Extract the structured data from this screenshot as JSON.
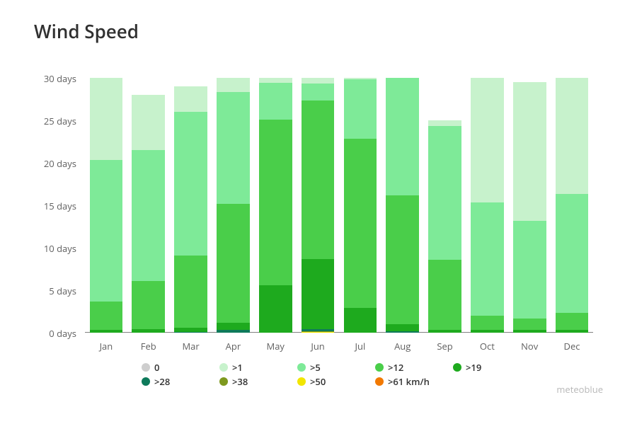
{
  "title": "Wind Speed",
  "attribution": "meteoblue",
  "chart": {
    "type": "stacked-bar",
    "ymax": 30,
    "ytick_step": 5,
    "ytick_suffix": " days",
    "background_color": "#ffffff",
    "baseline_color": "#808080",
    "tick_font_size": 13,
    "tick_color": "#606060",
    "title_font_size": 26,
    "title_color": "#303030",
    "categories": [
      "Jan",
      "Feb",
      "Mar",
      "Apr",
      "May",
      "Jun",
      "Jul",
      "Aug",
      "Sep",
      "Oct",
      "Nov",
      "Dec"
    ],
    "series_order": [
      "gt61",
      "gt50",
      "gt38",
      "gt28",
      "gt19",
      "gt12",
      "gt5",
      "gt1",
      "zero"
    ],
    "series": {
      "zero": {
        "label": "0",
        "color": "#cecece",
        "values": [
          0,
          0,
          0,
          0,
          0,
          0,
          0,
          0,
          0,
          0,
          0,
          0
        ]
      },
      "gt1": {
        "label": ">1",
        "color": "#c7f2cc",
        "values": [
          9.7,
          6.5,
          3.0,
          1.7,
          0.6,
          0.7,
          0.2,
          0.0,
          0.7,
          14.7,
          16.3,
          13.7
        ]
      },
      "gt5": {
        "label": ">5",
        "color": "#7eea98",
        "values": [
          16.6,
          15.4,
          16.9,
          13.1,
          4.3,
          2.0,
          7.0,
          13.8,
          15.7,
          13.3,
          11.5,
          14.0
        ]
      },
      "gt12": {
        "label": ">12",
        "color": "#4ace4a",
        "values": [
          3.4,
          5.7,
          8.5,
          14.0,
          19.5,
          18.6,
          19.9,
          15.2,
          8.3,
          1.7,
          1.4,
          2.0
        ]
      },
      "gt19": {
        "label": ">19",
        "color": "#1eaa1e",
        "values": [
          0.3,
          0.4,
          0.5,
          0.9,
          5.6,
          8.3,
          2.9,
          0.8,
          0.3,
          0.3,
          0.3,
          0.3
        ]
      },
      "gt28": {
        "label": ">28",
        "color": "#0e7a5b",
        "values": [
          0,
          0,
          0.1,
          0.3,
          0,
          0.2,
          0,
          0.2,
          0,
          0,
          0,
          0
        ]
      },
      "gt38": {
        "label": ">38",
        "color": "#7e991e",
        "values": [
          0,
          0,
          0,
          0,
          0,
          0.1,
          0,
          0,
          0,
          0,
          0,
          0
        ]
      },
      "gt50": {
        "label": ">50",
        "color": "#f2e600",
        "values": [
          0,
          0,
          0,
          0,
          0,
          0.1,
          0,
          0,
          0,
          0,
          0,
          0
        ]
      },
      "gt61": {
        "label": ">61 km/h",
        "color": "#f27900",
        "values": [
          0,
          0,
          0,
          0,
          0,
          0,
          0,
          0,
          0,
          0,
          0,
          0
        ]
      }
    },
    "legend_order": [
      "zero",
      "gt1",
      "gt5",
      "gt12",
      "gt19",
      "gt28",
      "gt38",
      "gt50",
      "gt61"
    ]
  }
}
